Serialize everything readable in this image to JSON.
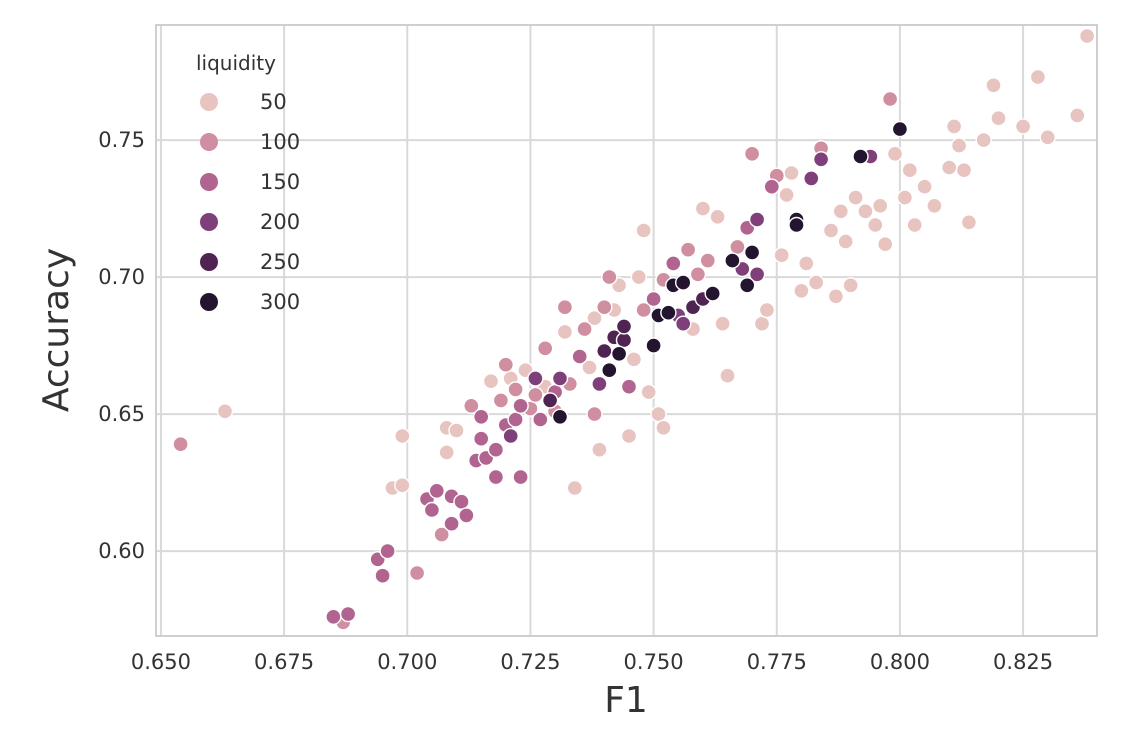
{
  "chart_data": {
    "type": "scatter",
    "title": "",
    "xlabel": "F1",
    "ylabel": "Accuracy",
    "xlim": [
      0.649,
      0.84
    ],
    "ylim": [
      0.569,
      0.792
    ],
    "x_ticks": [
      "0.650",
      "0.675",
      "0.700",
      "0.725",
      "0.750",
      "0.775",
      "0.800",
      "0.825"
    ],
    "y_ticks": [
      "0.60",
      "0.65",
      "0.70",
      "0.75"
    ],
    "grid": true,
    "legend": {
      "title": "liquidity",
      "placement": "top-left",
      "entries": [
        {
          "label": "50",
          "color": "#e8c4c0"
        },
        {
          "label": "100",
          "color": "#cf8fa0"
        },
        {
          "label": "150",
          "color": "#b0648f"
        },
        {
          "label": "200",
          "color": "#7e3f7b"
        },
        {
          "label": "250",
          "color": "#4f2352"
        },
        {
          "label": "300",
          "color": "#231530"
        }
      ]
    },
    "hue": "liquidity",
    "points": [
      [
        0.654,
        0.639,
        100
      ],
      [
        0.663,
        0.651,
        50
      ],
      [
        0.685,
        0.576,
        150
      ],
      [
        0.687,
        0.574,
        100
      ],
      [
        0.688,
        0.577,
        150
      ],
      [
        0.694,
        0.597,
        150
      ],
      [
        0.695,
        0.591,
        150
      ],
      [
        0.696,
        0.6,
        150
      ],
      [
        0.697,
        0.623,
        50
      ],
      [
        0.699,
        0.624,
        50
      ],
      [
        0.699,
        0.642,
        50
      ],
      [
        0.702,
        0.592,
        100
      ],
      [
        0.704,
        0.619,
        150
      ],
      [
        0.705,
        0.615,
        150
      ],
      [
        0.706,
        0.622,
        150
      ],
      [
        0.707,
        0.606,
        100
      ],
      [
        0.708,
        0.645,
        50
      ],
      [
        0.708,
        0.636,
        50
      ],
      [
        0.709,
        0.61,
        150
      ],
      [
        0.709,
        0.62,
        150
      ],
      [
        0.71,
        0.644,
        50
      ],
      [
        0.711,
        0.618,
        150
      ],
      [
        0.712,
        0.613,
        150
      ],
      [
        0.713,
        0.653,
        100
      ],
      [
        0.714,
        0.633,
        150
      ],
      [
        0.715,
        0.641,
        150
      ],
      [
        0.715,
        0.649,
        150
      ],
      [
        0.716,
        0.634,
        150
      ],
      [
        0.717,
        0.662,
        50
      ],
      [
        0.718,
        0.627,
        150
      ],
      [
        0.718,
        0.637,
        150
      ],
      [
        0.719,
        0.655,
        100
      ],
      [
        0.72,
        0.668,
        100
      ],
      [
        0.72,
        0.646,
        150
      ],
      [
        0.721,
        0.663,
        50
      ],
      [
        0.721,
        0.642,
        200
      ],
      [
        0.722,
        0.659,
        100
      ],
      [
        0.722,
        0.648,
        150
      ],
      [
        0.723,
        0.627,
        150
      ],
      [
        0.723,
        0.653,
        150
      ],
      [
        0.724,
        0.666,
        50
      ],
      [
        0.725,
        0.652,
        100
      ],
      [
        0.726,
        0.663,
        200
      ],
      [
        0.726,
        0.657,
        100
      ],
      [
        0.727,
        0.648,
        150
      ],
      [
        0.728,
        0.66,
        50
      ],
      [
        0.728,
        0.674,
        100
      ],
      [
        0.729,
        0.655,
        250
      ],
      [
        0.73,
        0.651,
        100
      ],
      [
        0.73,
        0.658,
        150
      ],
      [
        0.731,
        0.649,
        300
      ],
      [
        0.731,
        0.663,
        200
      ],
      [
        0.732,
        0.68,
        50
      ],
      [
        0.732,
        0.689,
        100
      ],
      [
        0.733,
        0.661,
        100
      ],
      [
        0.734,
        0.623,
        50
      ],
      [
        0.735,
        0.671,
        150
      ],
      [
        0.736,
        0.681,
        100
      ],
      [
        0.737,
        0.667,
        50
      ],
      [
        0.738,
        0.685,
        50
      ],
      [
        0.738,
        0.65,
        100
      ],
      [
        0.739,
        0.637,
        50
      ],
      [
        0.739,
        0.661,
        200
      ],
      [
        0.74,
        0.673,
        250
      ],
      [
        0.74,
        0.689,
        100
      ],
      [
        0.741,
        0.7,
        100
      ],
      [
        0.741,
        0.666,
        300
      ],
      [
        0.742,
        0.678,
        250
      ],
      [
        0.742,
        0.688,
        50
      ],
      [
        0.743,
        0.672,
        300
      ],
      [
        0.743,
        0.697,
        50
      ],
      [
        0.744,
        0.677,
        250
      ],
      [
        0.744,
        0.682,
        250
      ],
      [
        0.745,
        0.66,
        150
      ],
      [
        0.745,
        0.642,
        50
      ],
      [
        0.746,
        0.67,
        50
      ],
      [
        0.747,
        0.7,
        50
      ],
      [
        0.748,
        0.717,
        50
      ],
      [
        0.748,
        0.688,
        100
      ],
      [
        0.749,
        0.658,
        50
      ],
      [
        0.75,
        0.675,
        300
      ],
      [
        0.75,
        0.692,
        150
      ],
      [
        0.751,
        0.686,
        300
      ],
      [
        0.751,
        0.65,
        50
      ],
      [
        0.752,
        0.699,
        100
      ],
      [
        0.752,
        0.645,
        50
      ],
      [
        0.753,
        0.687,
        300
      ],
      [
        0.754,
        0.697,
        300
      ],
      [
        0.754,
        0.705,
        150
      ],
      [
        0.755,
        0.686,
        200
      ],
      [
        0.756,
        0.698,
        300
      ],
      [
        0.756,
        0.683,
        200
      ],
      [
        0.757,
        0.71,
        100
      ],
      [
        0.758,
        0.689,
        250
      ],
      [
        0.758,
        0.681,
        50
      ],
      [
        0.759,
        0.701,
        100
      ],
      [
        0.76,
        0.692,
        250
      ],
      [
        0.76,
        0.725,
        50
      ],
      [
        0.761,
        0.706,
        100
      ],
      [
        0.762,
        0.694,
        300
      ],
      [
        0.763,
        0.722,
        50
      ],
      [
        0.764,
        0.683,
        50
      ],
      [
        0.765,
        0.664,
        50
      ],
      [
        0.766,
        0.706,
        300
      ],
      [
        0.767,
        0.711,
        100
      ],
      [
        0.768,
        0.703,
        200
      ],
      [
        0.769,
        0.718,
        150
      ],
      [
        0.769,
        0.697,
        300
      ],
      [
        0.77,
        0.745,
        100
      ],
      [
        0.77,
        0.709,
        300
      ],
      [
        0.771,
        0.701,
        200
      ],
      [
        0.771,
        0.721,
        200
      ],
      [
        0.772,
        0.683,
        50
      ],
      [
        0.773,
        0.688,
        50
      ],
      [
        0.774,
        0.733,
        150
      ],
      [
        0.775,
        0.737,
        100
      ],
      [
        0.776,
        0.708,
        50
      ],
      [
        0.777,
        0.73,
        50
      ],
      [
        0.778,
        0.738,
        50
      ],
      [
        0.779,
        0.721,
        300
      ],
      [
        0.779,
        0.719,
        300
      ],
      [
        0.78,
        0.695,
        50
      ],
      [
        0.781,
        0.705,
        50
      ],
      [
        0.782,
        0.736,
        200
      ],
      [
        0.783,
        0.698,
        50
      ],
      [
        0.784,
        0.743,
        200
      ],
      [
        0.784,
        0.747,
        100
      ],
      [
        0.786,
        0.717,
        50
      ],
      [
        0.787,
        0.693,
        50
      ],
      [
        0.788,
        0.724,
        50
      ],
      [
        0.789,
        0.713,
        50
      ],
      [
        0.79,
        0.697,
        50
      ],
      [
        0.791,
        0.729,
        50
      ],
      [
        0.792,
        0.744,
        300
      ],
      [
        0.793,
        0.724,
        50
      ],
      [
        0.794,
        0.744,
        200
      ],
      [
        0.795,
        0.719,
        50
      ],
      [
        0.796,
        0.726,
        50
      ],
      [
        0.797,
        0.712,
        50
      ],
      [
        0.798,
        0.765,
        100
      ],
      [
        0.799,
        0.745,
        50
      ],
      [
        0.8,
        0.754,
        300
      ],
      [
        0.801,
        0.729,
        50
      ],
      [
        0.802,
        0.739,
        50
      ],
      [
        0.803,
        0.719,
        50
      ],
      [
        0.805,
        0.733,
        50
      ],
      [
        0.807,
        0.726,
        50
      ],
      [
        0.81,
        0.74,
        50
      ],
      [
        0.811,
        0.755,
        50
      ],
      [
        0.812,
        0.748,
        50
      ],
      [
        0.813,
        0.739,
        50
      ],
      [
        0.814,
        0.72,
        50
      ],
      [
        0.817,
        0.75,
        50
      ],
      [
        0.819,
        0.77,
        50
      ],
      [
        0.82,
        0.758,
        50
      ],
      [
        0.825,
        0.755,
        50
      ],
      [
        0.828,
        0.773,
        50
      ],
      [
        0.83,
        0.751,
        50
      ],
      [
        0.836,
        0.759,
        50
      ],
      [
        0.838,
        0.788,
        50
      ]
    ]
  }
}
